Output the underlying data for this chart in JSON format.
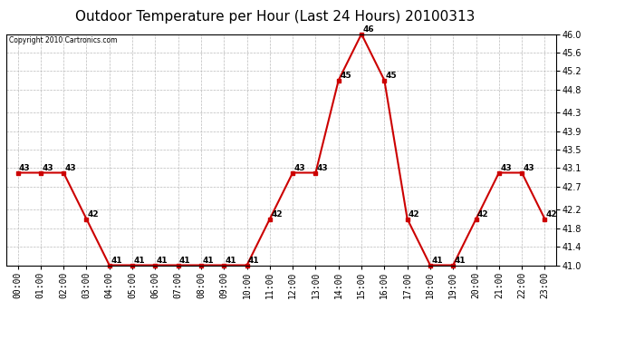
{
  "title": "Outdoor Temperature per Hour (Last 24 Hours) 20100313",
  "copyright": "Copyright 2010 Cartronics.com",
  "hours": [
    "00:00",
    "01:00",
    "02:00",
    "03:00",
    "04:00",
    "05:00",
    "06:00",
    "07:00",
    "08:00",
    "09:00",
    "10:00",
    "11:00",
    "12:00",
    "13:00",
    "14:00",
    "15:00",
    "16:00",
    "17:00",
    "18:00",
    "19:00",
    "20:00",
    "21:00",
    "22:00",
    "23:00"
  ],
  "values": [
    43,
    43,
    43,
    42,
    41,
    41,
    41,
    41,
    41,
    41,
    41,
    42,
    43,
    43,
    45,
    46,
    45,
    42,
    41,
    41,
    42,
    43,
    43,
    42
  ],
  "ylim_min": 41.0,
  "ylim_max": 46.0,
  "yticks": [
    41.0,
    41.4,
    41.8,
    42.2,
    42.7,
    43.1,
    43.5,
    43.9,
    44.3,
    44.8,
    45.2,
    45.6,
    46.0
  ],
  "line_color": "#cc0000",
  "marker_color": "#cc0000",
  "bg_color": "#ffffff",
  "grid_color": "#bbbbbb",
  "title_fontsize": 11,
  "tick_fontsize": 7,
  "annotation_fontsize": 6.5
}
